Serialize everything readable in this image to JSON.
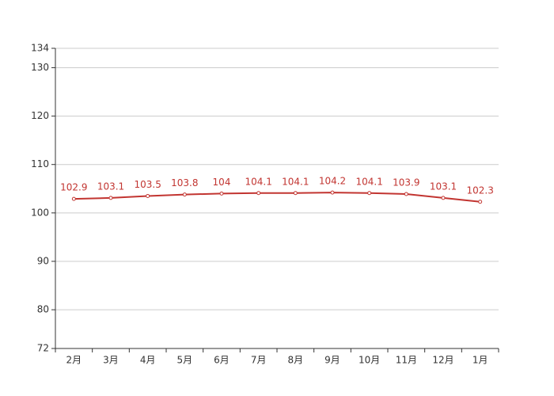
{
  "chart_data": {
    "type": "line",
    "categories": [
      "2月",
      "3月",
      "4月",
      "5月",
      "6月",
      "7月",
      "8月",
      "9月",
      "10月",
      "11月",
      "12月",
      "1月"
    ],
    "series": [
      {
        "color": "#c23531",
        "values": [
          102.9,
          103.1,
          103.5,
          103.8,
          104,
          104.1,
          104.1,
          104.2,
          104.1,
          103.9,
          103.1,
          102.3
        ]
      }
    ],
    "ylim": [
      72,
      134
    ],
    "yticks": [
      72,
      80,
      90,
      100,
      110,
      120,
      130,
      134
    ],
    "grid": true,
    "data_labels": true
  }
}
